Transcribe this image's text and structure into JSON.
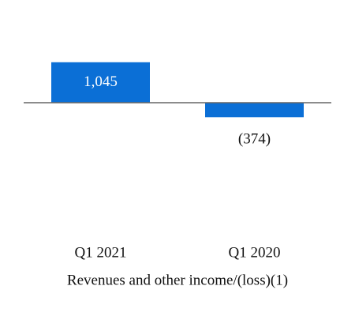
{
  "chart_data": {
    "type": "bar",
    "x_label": "Revenues and other income/(loss)(1)",
    "categories": [
      "Q1 2021",
      "Q1 2020"
    ],
    "values": [
      1045,
      -374
    ],
    "value_labels": [
      "1,045",
      "(374)"
    ],
    "color": "#0b6fd6"
  }
}
